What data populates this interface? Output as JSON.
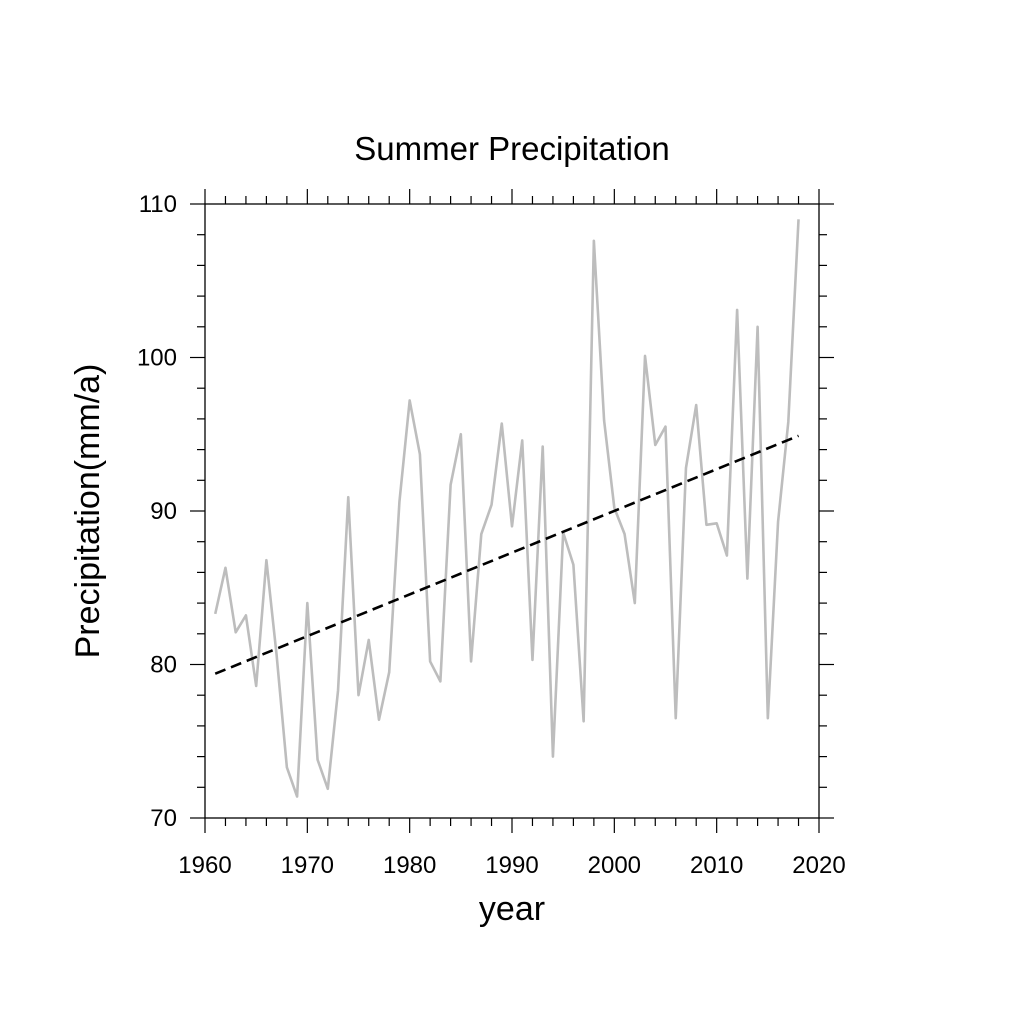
{
  "chart_data": {
    "type": "line",
    "title": "Summer Precipitation",
    "xlabel": "year",
    "ylabel": "Precipitation(mm/a)",
    "xlim": [
      1960,
      2020
    ],
    "ylim": [
      70,
      110
    ],
    "xticks": [
      "1960",
      "1970",
      "1980",
      "1990",
      "2000",
      "2010",
      "2020"
    ],
    "yticks": [
      "70",
      "80",
      "90",
      "100",
      "110"
    ],
    "grid": false,
    "series": [
      {
        "style": "solid",
        "color": "#bdbdbd",
        "x": [
          1961,
          1962,
          1963,
          1964,
          1965,
          1966,
          1967,
          1968,
          1969,
          1970,
          1971,
          1972,
          1973,
          1974,
          1975,
          1976,
          1977,
          1978,
          1979,
          1980,
          1981,
          1982,
          1983,
          1984,
          1985,
          1986,
          1987,
          1988,
          1989,
          1990,
          1991,
          1992,
          1993,
          1994,
          1995,
          1996,
          1997,
          1998,
          1999,
          2000,
          2001,
          2002,
          2003,
          2004,
          2005,
          2006,
          2007,
          2008,
          2009,
          2010,
          2011,
          2012,
          2013,
          2014,
          2015,
          2016,
          2017,
          2018
        ],
        "values": [
          83.3,
          86.3,
          82.1,
          83.2,
          78.6,
          86.8,
          80.6,
          73.3,
          71.4,
          84.0,
          73.8,
          71.9,
          78.3,
          90.9,
          78.0,
          81.6,
          76.4,
          79.5,
          90.6,
          97.2,
          93.7,
          80.2,
          78.9,
          91.7,
          95.0,
          80.2,
          88.5,
          90.4,
          95.7,
          89.0,
          94.6,
          80.3,
          94.2,
          74.0,
          88.6,
          86.5,
          76.3,
          107.6,
          95.9,
          90.2,
          88.5,
          84.0,
          100.1,
          94.3,
          95.5,
          76.5,
          92.8,
          96.9,
          89.1,
          89.2,
          87.1,
          103.1,
          85.6,
          102.0,
          76.5,
          89.3,
          95.8,
          109.0
        ]
      },
      {
        "style": "dashed",
        "color": "#000000",
        "x": [
          1961,
          2018
        ],
        "values": [
          79.4,
          94.9
        ]
      }
    ]
  }
}
